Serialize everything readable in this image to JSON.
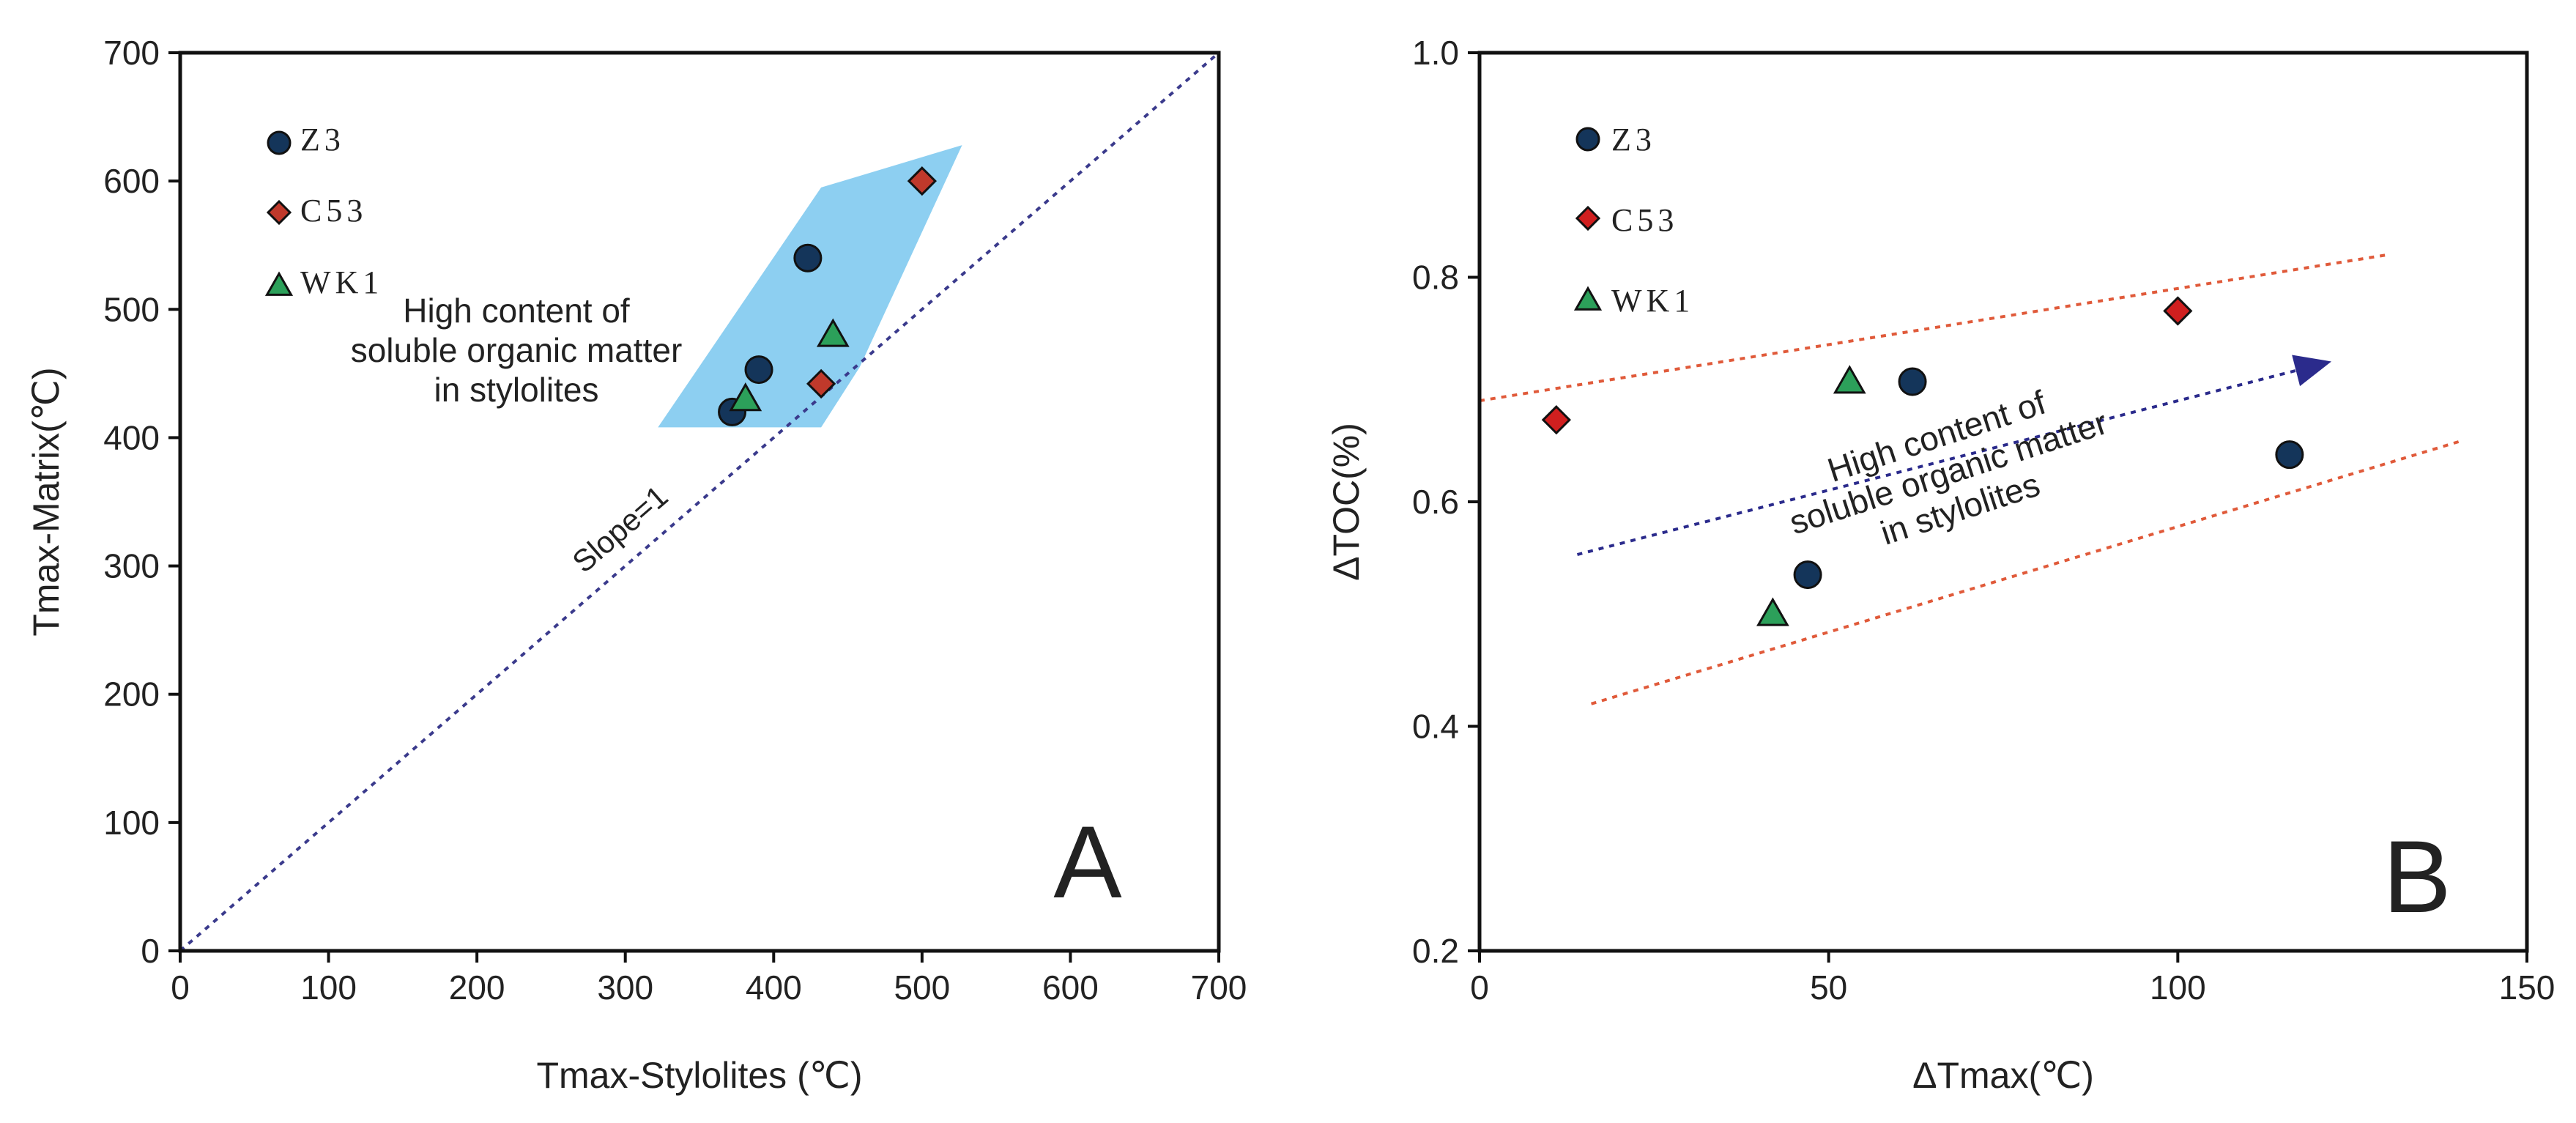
{
  "chart_data": [
    {
      "type": "scatter",
      "panel_label": "A",
      "xlabel": "Tmax-Stylolites (℃)",
      "ylabel": "Tmax-Matrix(℃)",
      "xlim": [
        0,
        700
      ],
      "ylim": [
        0,
        700
      ],
      "xticks": [
        0,
        100,
        200,
        300,
        400,
        500,
        600,
        700
      ],
      "yticks": [
        0,
        100,
        200,
        300,
        400,
        500,
        600,
        700
      ],
      "series": [
        {
          "name": "Z3",
          "marker": "circle",
          "color": "#14355a",
          "points": [
            [
              372,
              420
            ],
            [
              390,
              453
            ],
            [
              423,
              540
            ]
          ]
        },
        {
          "name": "C53",
          "marker": "diamond",
          "color": "#c0392b",
          "points": [
            [
              432,
              442
            ],
            [
              500,
              600
            ]
          ]
        },
        {
          "name": "WK1",
          "marker": "triangle",
          "color": "#2ca05a",
          "points": [
            [
              381,
              430
            ],
            [
              440,
              480
            ]
          ]
        }
      ],
      "shaded_region": {
        "color": "#87ccf0",
        "vertices": [
          [
            322,
            408
          ],
          [
            432,
            595
          ],
          [
            527,
            628
          ],
          [
            458,
            455
          ],
          [
            432,
            408
          ]
        ]
      },
      "reference_line": {
        "label": "Slope=1",
        "from": [
          0,
          0
        ],
        "to": [
          700,
          700
        ],
        "color": "#3a3a8c"
      },
      "annotation": "High content of soluble organic matter in stylolites",
      "annotation_lines": [
        "High content of",
        "soluble organic matter",
        "in stylolites"
      ],
      "annotation_color": "#c0392b"
    },
    {
      "type": "scatter",
      "panel_label": "B",
      "xlabel": "ΔTmax(℃)",
      "ylabel": "ΔTOC(%)",
      "xlim": [
        0,
        150
      ],
      "ylim": [
        0.2,
        1.0
      ],
      "xticks": [
        0,
        50,
        100,
        150
      ],
      "yticks": [
        "0.2",
        "0.4",
        "0.6",
        "0.8",
        "1.0"
      ],
      "series": [
        {
          "name": "Z3",
          "marker": "circle",
          "color": "#14355a",
          "points": [
            [
              47,
              0.535
            ],
            [
              62,
              0.707
            ],
            [
              116,
              0.642
            ]
          ]
        },
        {
          "name": "C53",
          "marker": "diamond",
          "color": "#d01f1f",
          "points": [
            [
              11,
              0.673
            ],
            [
              100,
              0.77
            ]
          ]
        },
        {
          "name": "WK1",
          "marker": "triangle",
          "color": "#2ca05a",
          "points": [
            [
              42,
              0.5
            ],
            [
              53,
              0.707
            ]
          ]
        }
      ],
      "bounds": [
        {
          "from": [
            0,
            0.69
          ],
          "to": [
            130,
            0.82
          ],
          "color": "#e05a3a"
        },
        {
          "from": [
            16,
            0.42
          ],
          "to": [
            141,
            0.655
          ],
          "color": "#e05a3a"
        }
      ],
      "trend_arrow": {
        "from": [
          14,
          0.553
        ],
        "to": [
          122,
          0.725
        ],
        "color": "#2b2b8c"
      },
      "annotation": "High content of soluble organic matter in stylolites",
      "annotation_lines": [
        "High content of",
        "soluble organic matter",
        "in stylolites"
      ],
      "annotation_color": "#c0392b"
    }
  ]
}
